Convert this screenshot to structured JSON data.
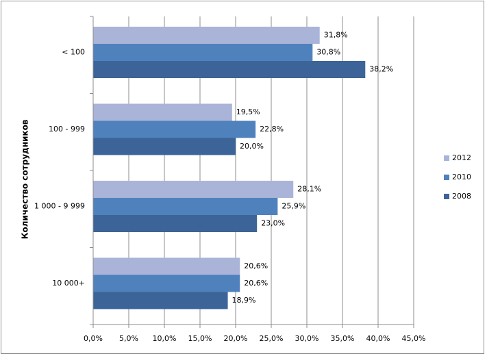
{
  "chart_data": {
    "type": "bar",
    "orientation": "horizontal",
    "title": "",
    "xlabel": "",
    "ylabel": "Количество сотрудников",
    "xlim": [
      0,
      45
    ],
    "x_ticks": [
      "0,0%",
      "5,0%",
      "10,0%",
      "15,0%",
      "20,0%",
      "25,0%",
      "30,0%",
      "35,0%",
      "40,0%",
      "45,0%"
    ],
    "grid": true,
    "legend_position": "right",
    "categories": [
      "< 100",
      "100 - 999",
      "1 000 - 9 999",
      "10 000+"
    ],
    "series": [
      {
        "name": "2012",
        "color": "#aab4d8",
        "values": [
          31.8,
          19.5,
          28.1,
          20.6
        ],
        "labels": [
          "31,8%",
          "19,5%",
          "28,1%",
          "20,6%"
        ]
      },
      {
        "name": "2010",
        "color": "#4f81bd",
        "values": [
          30.8,
          22.8,
          25.9,
          20.6
        ],
        "labels": [
          "30,8%",
          "22,8%",
          "25,9%",
          "20,6%"
        ]
      },
      {
        "name": "2008",
        "color": "#3c6498",
        "values": [
          38.2,
          20.0,
          23.0,
          18.9
        ],
        "labels": [
          "38,2%",
          "20,0%",
          "23,0%",
          "18,9%"
        ]
      }
    ]
  }
}
